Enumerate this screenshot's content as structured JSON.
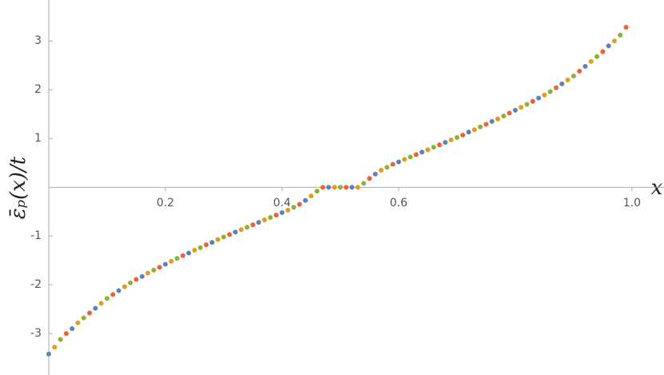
{
  "chart_data": {
    "type": "scatter",
    "xlabel": "x",
    "ylabel": "ε̄ₚ(x)/t",
    "xlim": [
      0,
      1.055
    ],
    "ylim": [
      -3.85,
      3.84
    ],
    "xticks": [
      0.2,
      0.4,
      0.6,
      {
        "value": 1,
        "label": "1.0"
      }
    ],
    "yticks": [
      -3,
      -2,
      -1,
      1,
      2,
      3
    ],
    "series": [
      {
        "color": "#5e81b5",
        "x": [
          0,
          0.04,
          0.08,
          0.12,
          0.16,
          0.2,
          0.24,
          0.28,
          0.32,
          0.36,
          0.4,
          0.44,
          0.48,
          0.52,
          0.56,
          0.6,
          0.64,
          0.68,
          0.72,
          0.76,
          0.8,
          0.84,
          0.88,
          0.92,
          0.96
        ],
        "values": [
          -3.42,
          -2.9,
          -2.48,
          -2.12,
          -1.83,
          -1.58,
          -1.35,
          -1.13,
          -0.92,
          -0.72,
          -0.52,
          -0.27,
          0,
          0,
          0.27,
          0.52,
          0.72,
          0.92,
          1.13,
          1.35,
          1.58,
          1.83,
          2.12,
          2.48,
          2.9
        ]
      },
      {
        "color": "#e19c24",
        "x": [
          0.01,
          0.05,
          0.09,
          0.13,
          0.17,
          0.21,
          0.25,
          0.29,
          0.33,
          0.37,
          0.41,
          0.45,
          0.49,
          0.53,
          0.57,
          0.61,
          0.65,
          0.69,
          0.73,
          0.77,
          0.81,
          0.85,
          0.89,
          0.93,
          0.97
        ],
        "values": [
          -3.28,
          -2.78,
          -2.38,
          -2.04,
          -1.76,
          -1.52,
          -1.29,
          -1.07,
          -0.87,
          -0.67,
          -0.47,
          -0.18,
          0,
          0,
          0.35,
          0.57,
          0.77,
          0.97,
          1.18,
          1.4,
          1.64,
          1.89,
          2.2,
          2.58,
          3.0
        ]
      },
      {
        "color": "#8fb032",
        "x": [
          0.02,
          0.06,
          0.1,
          0.14,
          0.18,
          0.22,
          0.26,
          0.3,
          0.34,
          0.38,
          0.42,
          0.46,
          0.5,
          0.54,
          0.58,
          0.62,
          0.66,
          0.7,
          0.74,
          0.78,
          0.82,
          0.86,
          0.9,
          0.94,
          0.98
        ],
        "values": [
          -3.12,
          -2.68,
          -2.28,
          -1.96,
          -1.7,
          -1.46,
          -1.24,
          -1.02,
          -0.82,
          -0.62,
          -0.41,
          -0.08,
          0,
          0.08,
          0.41,
          0.62,
          0.82,
          1.02,
          1.24,
          1.46,
          1.7,
          1.96,
          2.28,
          2.68,
          3.12
        ]
      },
      {
        "color": "#eb6235",
        "x": [
          0.03,
          0.07,
          0.11,
          0.15,
          0.19,
          0.23,
          0.27,
          0.31,
          0.35,
          0.39,
          0.43,
          0.47,
          0.51,
          0.55,
          0.59,
          0.63,
          0.67,
          0.71,
          0.75,
          0.79,
          0.83,
          0.87,
          0.91,
          0.95,
          0.99
        ],
        "values": [
          -3.0,
          -2.58,
          -2.2,
          -1.89,
          -1.64,
          -1.4,
          -1.18,
          -0.97,
          -0.77,
          -0.57,
          -0.35,
          0,
          0,
          0.18,
          0.47,
          0.67,
          0.87,
          1.07,
          1.29,
          1.52,
          1.76,
          2.04,
          2.38,
          2.78,
          3.28
        ]
      }
    ]
  }
}
